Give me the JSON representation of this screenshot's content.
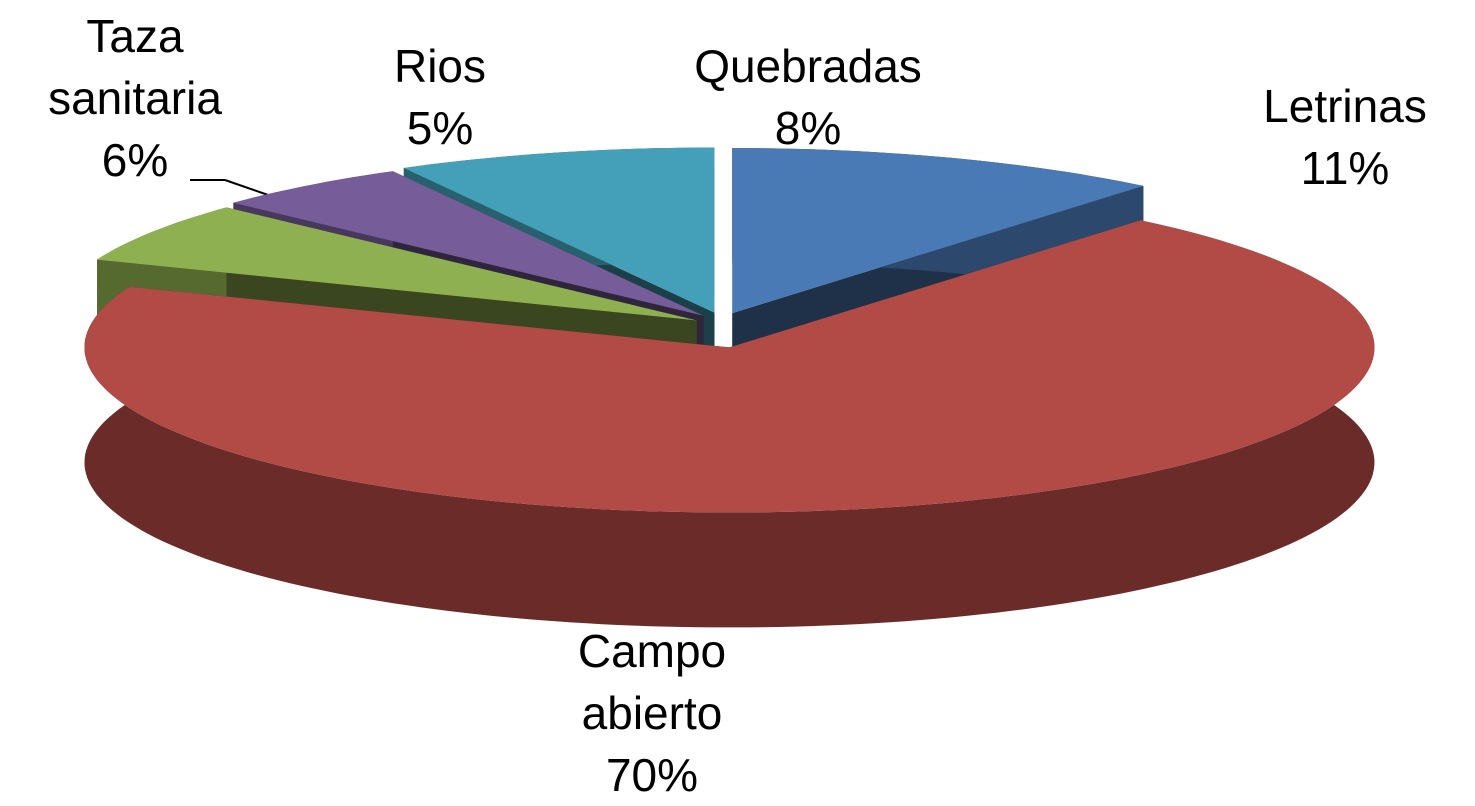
{
  "chart_data": {
    "type": "pie3d",
    "categories": [
      "Letrinas",
      "Campo abierto",
      "Taza sanitaria",
      "Rios",
      "Quebradas"
    ],
    "values": [
      11,
      70,
      6,
      5,
      8
    ],
    "value_labels": [
      "11%",
      "70%",
      "6%",
      "5%",
      "8%"
    ],
    "colors": [
      "#4a7ab5",
      "#b24a45",
      "#8fb050",
      "#765d99",
      "#44a0b8"
    ]
  }
}
